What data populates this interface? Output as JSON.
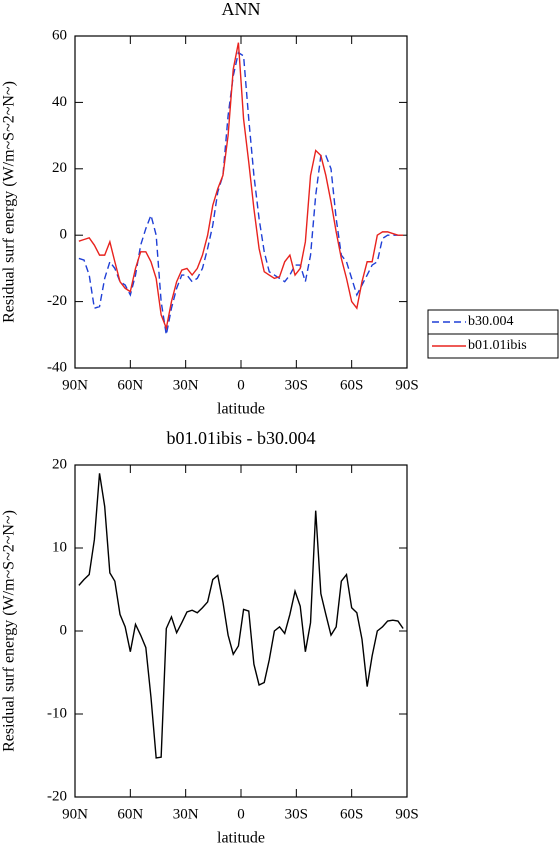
{
  "chart_data": [
    {
      "type": "line",
      "title": "ANN",
      "xlabel": "latitude",
      "ylabel": "Residual surf energy (W/m~S~2~N~)",
      "x": [
        87.9,
        85.1,
        82.3,
        79.5,
        76.7,
        73.9,
        71.1,
        68.4,
        65.6,
        62.8,
        60.0,
        57.2,
        54.4,
        51.6,
        48.8,
        46.0,
        43.3,
        40.5,
        37.7,
        34.9,
        32.1,
        29.3,
        26.5,
        23.7,
        20.9,
        18.1,
        15.3,
        12.6,
        9.8,
        7.0,
        4.2,
        1.4,
        -1.4,
        -4.2,
        -7.0,
        -9.8,
        -12.6,
        -15.3,
        -18.1,
        -20.9,
        -23.7,
        -26.5,
        -29.3,
        -32.1,
        -34.9,
        -37.7,
        -40.5,
        -43.3,
        -46.0,
        -48.8,
        -51.6,
        -54.4,
        -57.2,
        -60.0,
        -62.8,
        -65.6,
        -68.4,
        -71.1,
        -73.9,
        -76.7,
        -79.5,
        -82.3,
        -85.1,
        -87.9
      ],
      "series": [
        {
          "name": "b30.004",
          "color": "#1f3fd6",
          "line_style": "dashed",
          "values": [
            -7,
            -7.5,
            -12,
            -22,
            -21.5,
            -13,
            -8,
            -10,
            -14,
            -15,
            -18,
            -12,
            -3,
            2,
            6,
            0,
            -20,
            -30,
            -22,
            -16,
            -12,
            -12,
            -14,
            -13,
            -10,
            -4,
            3,
            13,
            18,
            36,
            48,
            55,
            54,
            35,
            18,
            5,
            -5,
            -11,
            -12,
            -13,
            -14,
            -12,
            -9,
            -9,
            -14,
            -6,
            12,
            24,
            24,
            20,
            5,
            -6,
            -8,
            -13,
            -18,
            -15,
            -12,
            -9,
            -8,
            -1,
            0,
            0,
            0,
            0
          ]
        },
        {
          "name": "b01.01ibis",
          "color": "#e8231e",
          "line_style": "solid",
          "values": [
            -1.8,
            -1.3,
            -0.8,
            -3,
            -6,
            -6,
            -2,
            -8,
            -14,
            -16,
            -17,
            -10,
            -5,
            -5,
            -8,
            -13,
            -24,
            -28,
            -20,
            -14,
            -10.5,
            -10,
            -12,
            -10,
            -6,
            0,
            9,
            14,
            18,
            30,
            50,
            58,
            35,
            22,
            8,
            -4,
            -11,
            -12,
            -13,
            -12.5,
            -8,
            -6,
            -12,
            -10,
            -2,
            18,
            25.5,
            24,
            18,
            10,
            1,
            -7,
            -13,
            -20,
            -22,
            -14,
            -8,
            -8,
            0,
            1,
            1,
            0.5,
            0,
            0
          ]
        }
      ],
      "xlim": [
        90,
        -90
      ],
      "xticks": [
        {
          "value": 90,
          "label": "90N"
        },
        {
          "value": 60,
          "label": "60N"
        },
        {
          "value": 30,
          "label": "30N"
        },
        0,
        {
          "value": -30,
          "label": "30S"
        },
        {
          "value": -60,
          "label": "60S"
        },
        {
          "value": -90,
          "label": "90S"
        }
      ],
      "ylim": [
        -40,
        60
      ],
      "yticks": [
        -40,
        -20,
        0,
        20,
        40,
        60
      ],
      "legend": "outside-right"
    },
    {
      "type": "line",
      "title": "b01.01ibis - b30.004",
      "xlabel": "latitude",
      "ylabel": "Residual surf energy (W/m~S~2~N~)",
      "x": [
        87.9,
        85.1,
        82.3,
        79.5,
        76.7,
        73.9,
        71.1,
        68.4,
        65.6,
        62.8,
        60.0,
        57.2,
        54.4,
        51.6,
        48.8,
        46.0,
        43.3,
        40.5,
        37.7,
        34.9,
        32.1,
        29.3,
        26.5,
        23.7,
        20.9,
        18.1,
        15.3,
        12.6,
        9.8,
        7.0,
        4.2,
        1.4,
        -1.4,
        -4.2,
        -7.0,
        -9.8,
        -12.6,
        -15.3,
        -18.1,
        -20.9,
        -23.7,
        -26.5,
        -29.3,
        -32.1,
        -34.9,
        -37.7,
        -40.5,
        -43.3,
        -46.0,
        -48.8,
        -51.6,
        -54.4,
        -57.2,
        -60.0,
        -62.8,
        -65.6,
        -68.4,
        -71.1,
        -73.9,
        -76.7,
        -79.5,
        -82.3,
        -85.1,
        -87.9
      ],
      "values": [
        5.5,
        6.2,
        6.8,
        11,
        19,
        15,
        7,
        6,
        2,
        0.5,
        -2.5,
        0.8,
        -0.5,
        -2,
        -8,
        -15.3,
        -15.2,
        0.3,
        1.7,
        -0.2,
        1,
        2.3,
        2.5,
        2.2,
        2.8,
        3.5,
        6.2,
        6.7,
        3.5,
        -0.5,
        -2.8,
        -1.8,
        2.6,
        2.4,
        -4,
        -6.5,
        -6.2,
        -3.5,
        0,
        0.5,
        -0.3,
        2,
        4.8,
        3,
        -2.5,
        1,
        14.5,
        4.5,
        2,
        -0.5,
        0.5,
        6,
        6.8,
        2.8,
        2.2,
        -1,
        -6.7,
        -3,
        0,
        0.5,
        1.2,
        1.3,
        1.2,
        0.3
      ],
      "color": "#000000",
      "xlim": [
        90,
        -90
      ],
      "xticks": [
        {
          "value": 90,
          "label": "90N"
        },
        {
          "value": 60,
          "label": "60N"
        },
        {
          "value": 30,
          "label": "30N"
        },
        0,
        {
          "value": -30,
          "label": "30S"
        },
        {
          "value": -60,
          "label": "60S"
        },
        {
          "value": -90,
          "label": "90S"
        }
      ],
      "ylim": [
        -20,
        20
      ],
      "yticks": [
        -20,
        -10,
        0,
        10,
        20
      ]
    }
  ]
}
